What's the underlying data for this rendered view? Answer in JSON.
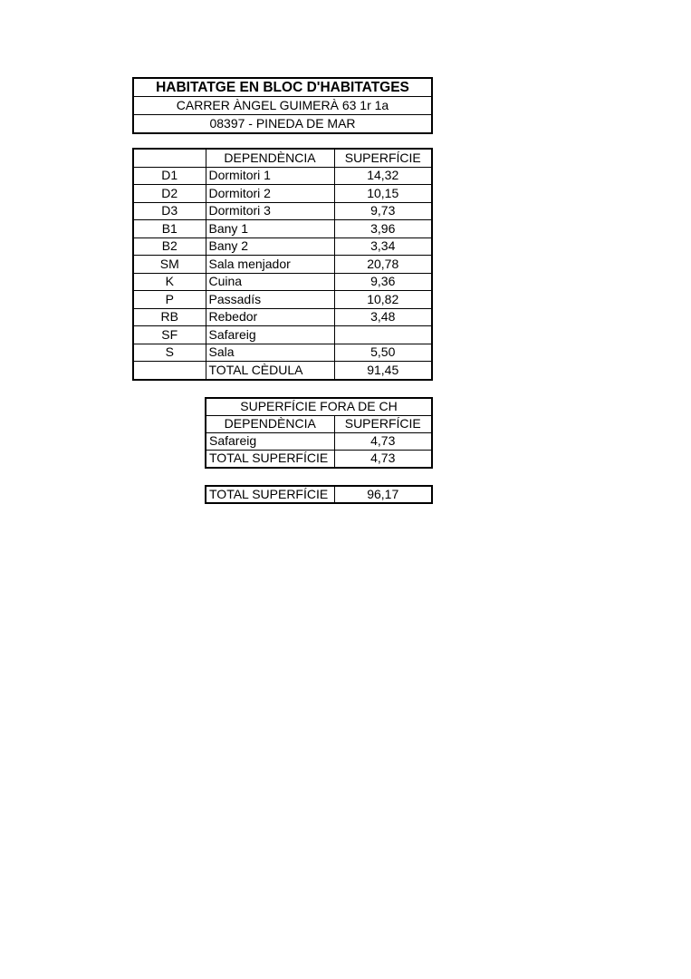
{
  "page": {
    "background_color": "#ffffff",
    "border_color": "#000000",
    "text_color": "#000000"
  },
  "header": {
    "title": "HABITATGE EN BLOC D'HABITATGES",
    "address": "CARRER ÀNGEL GUIMERÀ 63 1r 1a",
    "postal_city": "08397 - PINEDA DE MAR"
  },
  "rooms_table": {
    "columns": [
      "",
      "DEPENDÈNCIA",
      "SUPERFÍCIE"
    ],
    "rows": [
      {
        "code": "D1",
        "name": "Dormitori 1",
        "area": "14,32"
      },
      {
        "code": "D2",
        "name": "Dormitori 2",
        "area": "10,15"
      },
      {
        "code": "D3",
        "name": "Dormitori 3",
        "area": "9,73"
      },
      {
        "code": "B1",
        "name": "Bany 1",
        "area": "3,96"
      },
      {
        "code": "B2",
        "name": "Bany 2",
        "area": "3,34"
      },
      {
        "code": "SM",
        "name": "Sala menjador",
        "area": "20,78"
      },
      {
        "code": "K",
        "name": "Cuina",
        "area": "9,36"
      },
      {
        "code": "P",
        "name": "Passadís",
        "area": "10,82"
      },
      {
        "code": "RB",
        "name": "Rebedor",
        "area": "3,48"
      },
      {
        "code": "SF",
        "name": "Safareig",
        "area": ""
      },
      {
        "code": "S",
        "name": "Sala",
        "area": "5,50"
      }
    ],
    "total": {
      "label": "TOTAL CÈDULA",
      "value": "91,45"
    }
  },
  "outside_table": {
    "title": "SUPERFÍCIE FORA DE CH",
    "columns": [
      "DEPENDÈNCIA",
      "SUPERFÍCIE"
    ],
    "rows": [
      {
        "name": "Safareig",
        "area": "4,73"
      }
    ],
    "total": {
      "label": "TOTAL SUPERFÍCIE",
      "value": "4,73"
    }
  },
  "grand_total": {
    "label": "TOTAL SUPERFÍCIE",
    "value": "96,17"
  }
}
